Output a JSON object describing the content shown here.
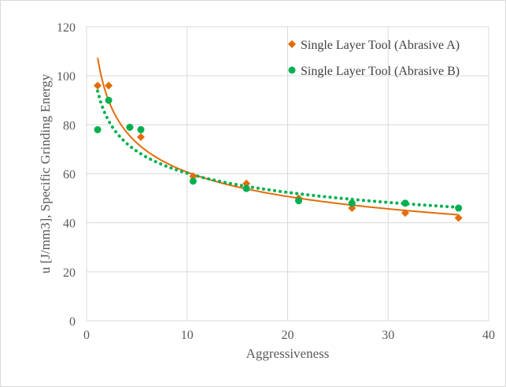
{
  "chart_data": {
    "type": "scatter",
    "title": "",
    "xlabel": "Aggressiveness",
    "ylabel": "u [J/mm3], Specific Grinding Energy",
    "xlim": [
      0,
      40
    ],
    "ylim": [
      0,
      120
    ],
    "x_ticks": [
      "0",
      "10",
      "20",
      "30",
      "40"
    ],
    "y_ticks": [
      "0",
      "20",
      "40",
      "60",
      "80",
      "100",
      "120"
    ],
    "grid": true,
    "legend_position": "top-right",
    "series": [
      {
        "name": "Single Layer Tool (Abrasive A)",
        "color": "#e46c0a",
        "marker": "diamond",
        "trendline": "power",
        "trendline_style": "solid",
        "points": [
          {
            "x": 1.1,
            "y": 96
          },
          {
            "x": 2.2,
            "y": 96
          },
          {
            "x": 4.3,
            "y": 79
          },
          {
            "x": 5.4,
            "y": 75
          },
          {
            "x": 10.6,
            "y": 59
          },
          {
            "x": 15.9,
            "y": 56
          },
          {
            "x": 21.1,
            "y": 50
          },
          {
            "x": 26.4,
            "y": 46
          },
          {
            "x": 31.7,
            "y": 44
          },
          {
            "x": 37.0,
            "y": 42
          }
        ]
      },
      {
        "name": "Single Layer Tool (Abrasive B)",
        "color": "#00b050",
        "marker": "circle",
        "trendline": "power",
        "trendline_style": "dotted",
        "points": [
          {
            "x": 1.1,
            "y": 78
          },
          {
            "x": 2.2,
            "y": 90
          },
          {
            "x": 4.3,
            "y": 79
          },
          {
            "x": 5.4,
            "y": 78
          },
          {
            "x": 10.6,
            "y": 57
          },
          {
            "x": 15.9,
            "y": 54
          },
          {
            "x": 21.1,
            "y": 49
          },
          {
            "x": 26.4,
            "y": 48
          },
          {
            "x": 31.7,
            "y": 48
          },
          {
            "x": 37.0,
            "y": 46
          }
        ]
      }
    ]
  }
}
